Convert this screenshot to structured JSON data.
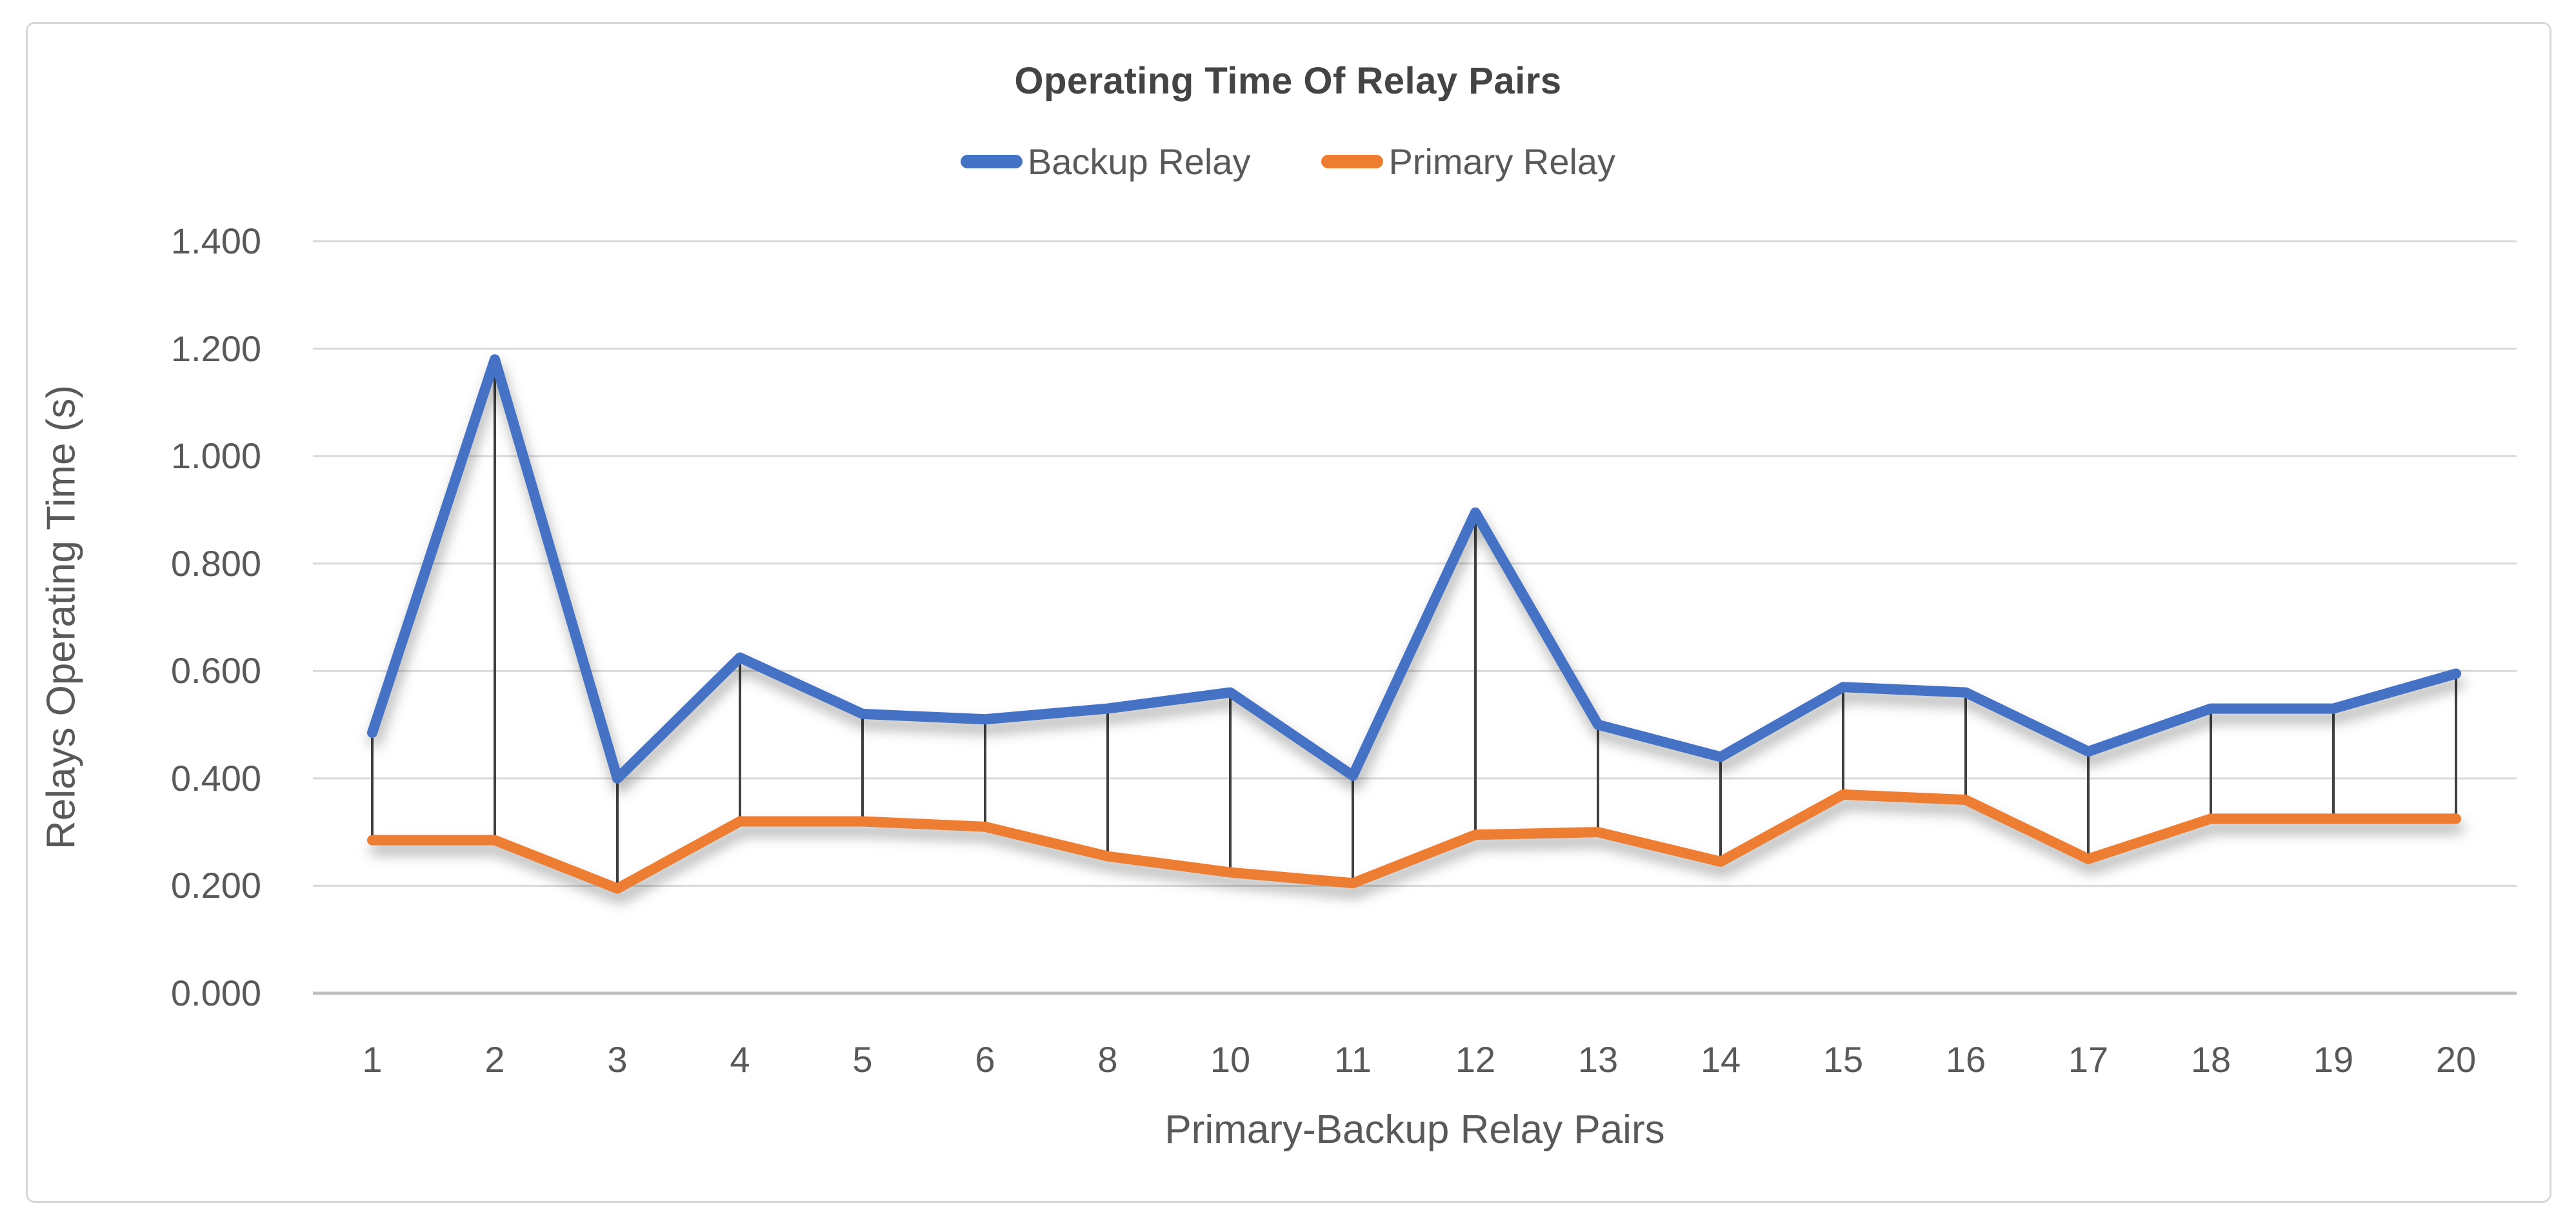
{
  "figure": {
    "title": "Operating Time Of Relay Pairs"
  },
  "legend": [
    {
      "label": "Backup Relay",
      "color": "#4472C4"
    },
    {
      "label": "Primary Relay",
      "color": "#ED7D31"
    }
  ],
  "chart_data": {
    "type": "line",
    "title": "Operating Time Of Relay Pairs",
    "xlabel": "Primary-Backup Relay Pairs",
    "ylabel": "Relays Operating Time (s)",
    "categories": [
      "1",
      "2",
      "3",
      "4",
      "5",
      "6",
      "8",
      "10",
      "11",
      "12",
      "13",
      "14",
      "15",
      "16",
      "17",
      "18",
      "19",
      "20"
    ],
    "series": [
      {
        "name": "Backup Relay",
        "color": "#4472C4",
        "values": [
          0.485,
          1.18,
          0.4,
          0.625,
          0.52,
          0.51,
          0.53,
          0.56,
          0.405,
          0.895,
          0.5,
          0.44,
          0.57,
          0.56,
          0.45,
          0.53,
          0.53,
          0.595
        ]
      },
      {
        "name": "Primary Relay",
        "color": "#ED7D31",
        "values": [
          0.285,
          0.285,
          0.195,
          0.32,
          0.32,
          0.31,
          0.255,
          0.225,
          0.205,
          0.295,
          0.3,
          0.245,
          0.37,
          0.36,
          0.25,
          0.325,
          0.325,
          0.325
        ]
      }
    ],
    "y_ticks": [
      "1.400",
      "1.200",
      "1.000",
      "0.800",
      "0.600",
      "0.400",
      "0.200",
      "0.000"
    ],
    "ylim": [
      0.0,
      1.4
    ],
    "grid": true,
    "legend_position": "top",
    "drop_lines": true,
    "gridline_color": "#d9d9d9",
    "axis_line_color": "#bfbfbf",
    "drop_line_color": "#404040"
  }
}
